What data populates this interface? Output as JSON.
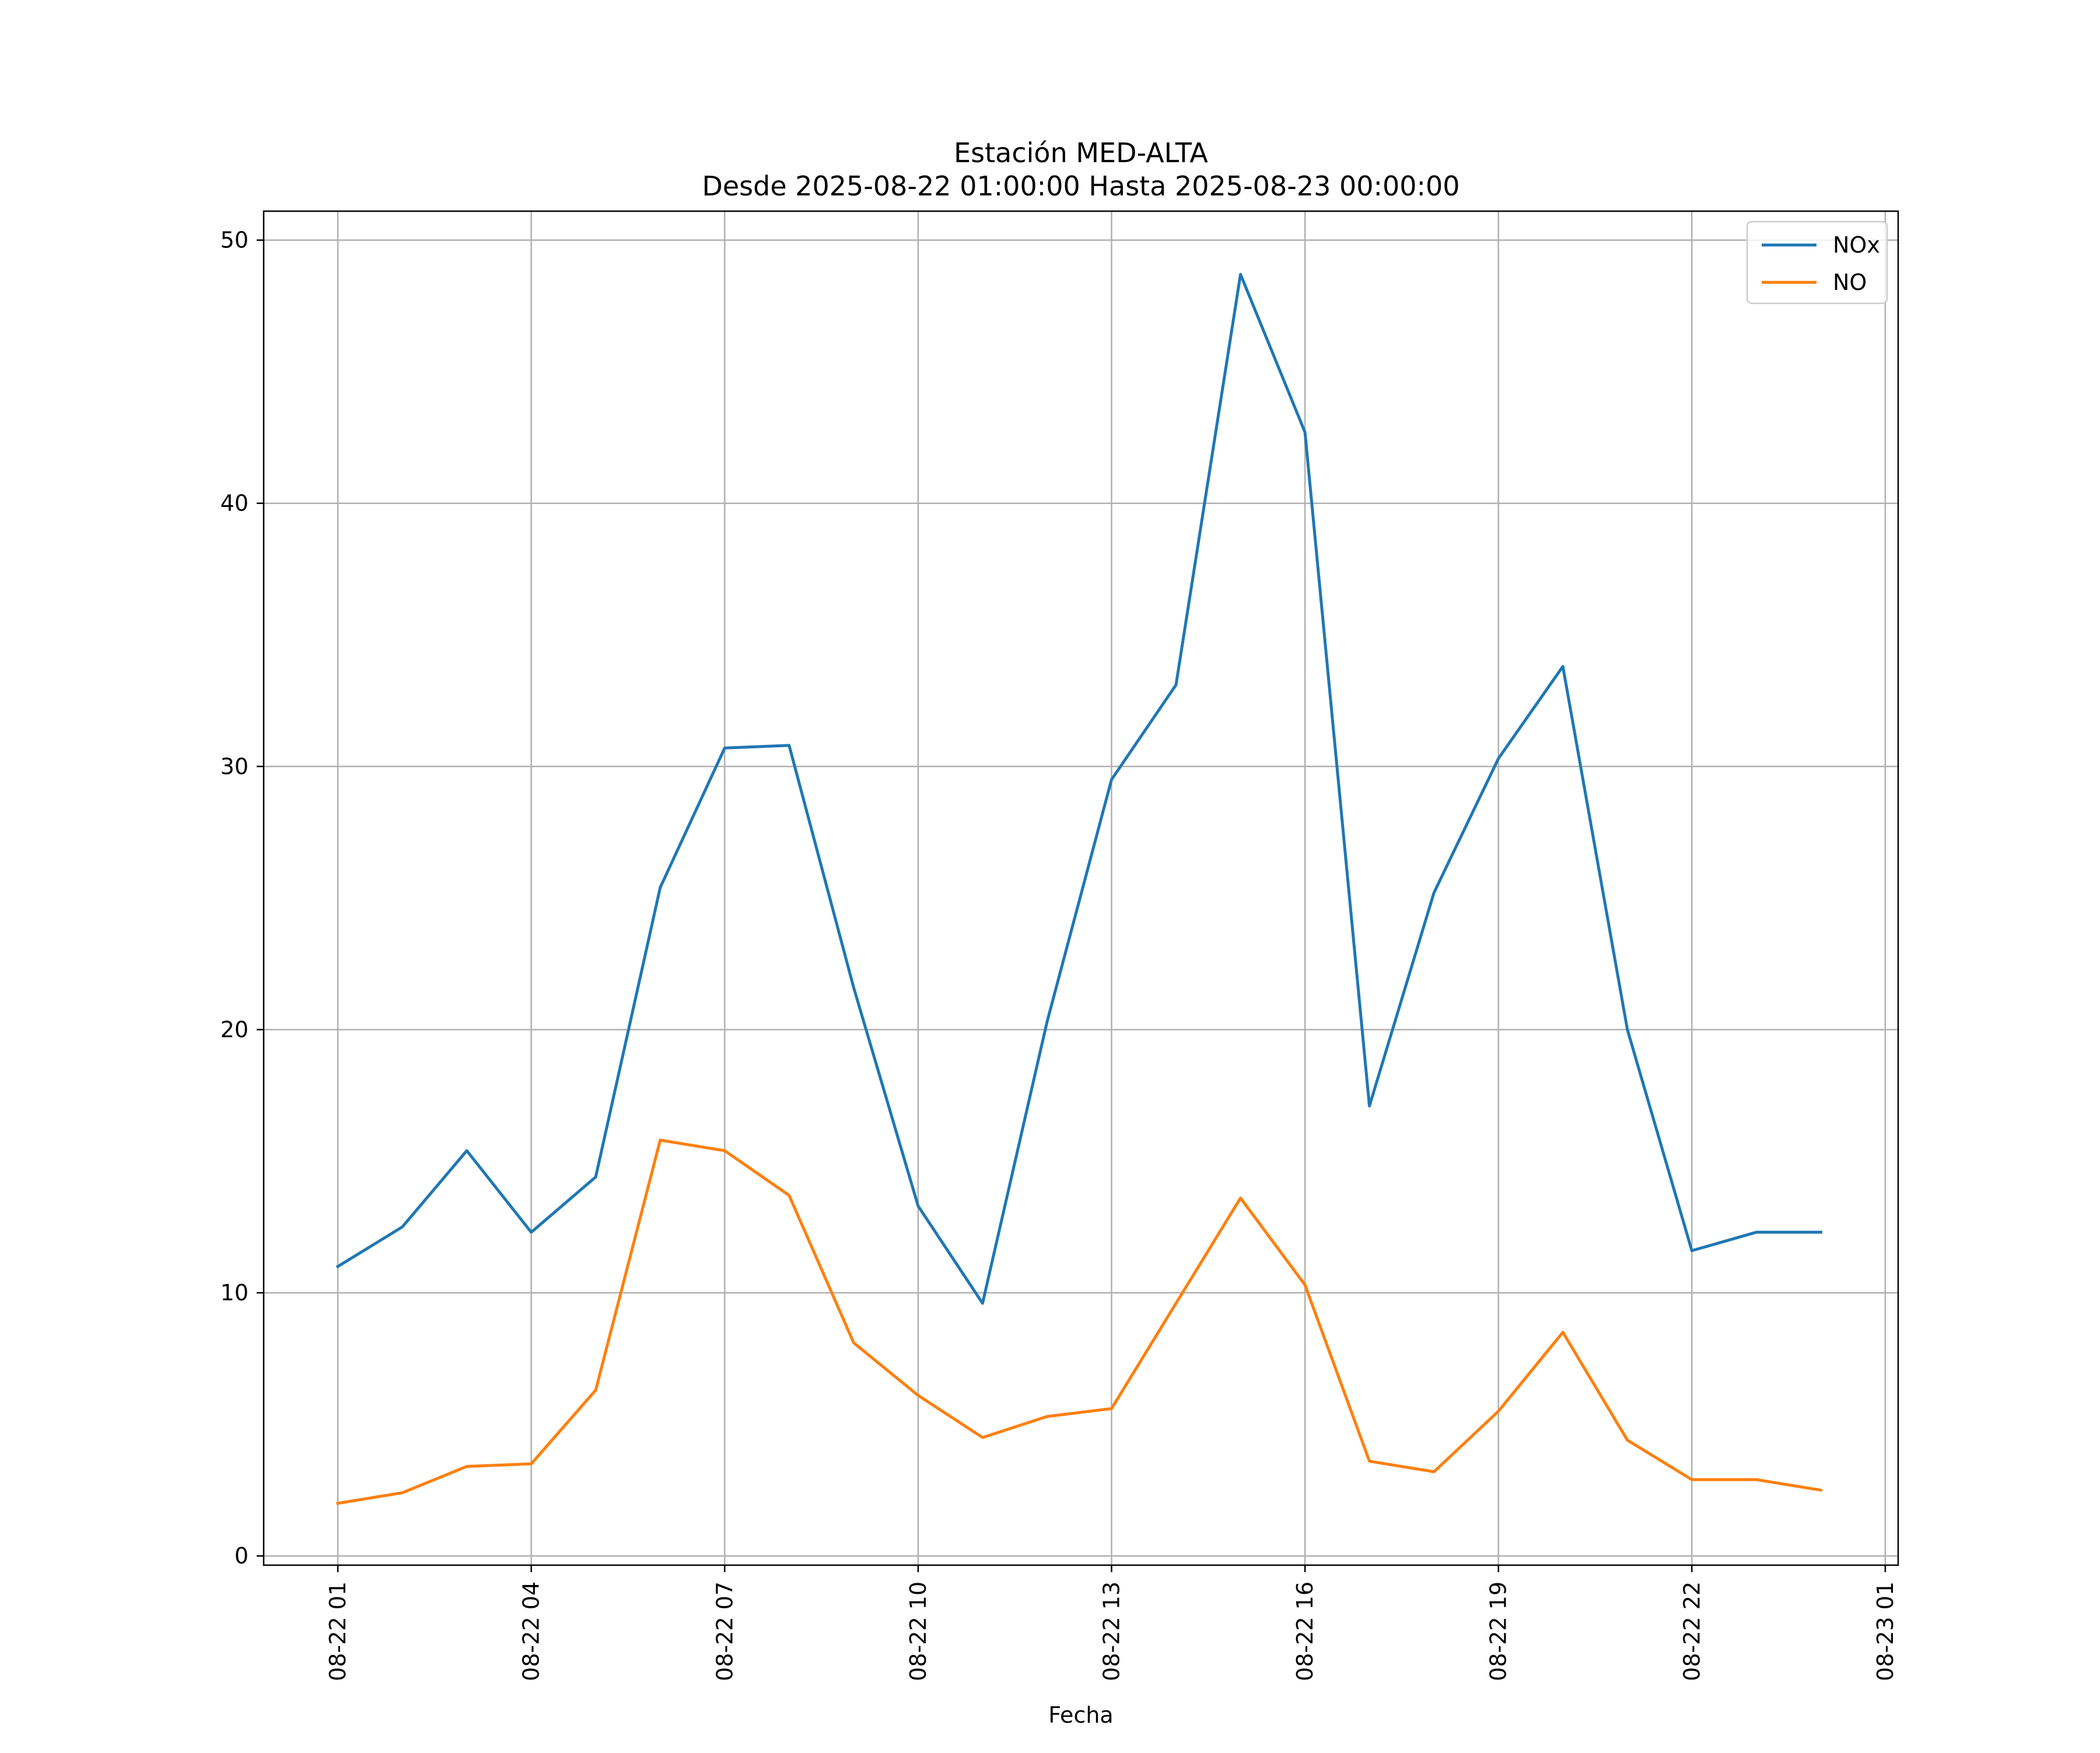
{
  "chart_data": {
    "type": "line",
    "title": "Estación MED-ALTA",
    "subtitle": "Desde 2025-08-22 01:00:00 Hasta 2025-08-23 00:00:00",
    "xlabel": "Fecha",
    "ylabel": "",
    "x_unit": "hours since 2025-08-22 00:00",
    "xlim": [
      -0.15,
      25.2
    ],
    "ylim": [
      -0.35,
      51.1
    ],
    "x_ticks": [
      {
        "value": 1,
        "label": "08-22 01"
      },
      {
        "value": 4,
        "label": "08-22 04"
      },
      {
        "value": 7,
        "label": "08-22 07"
      },
      {
        "value": 10,
        "label": "08-22 10"
      },
      {
        "value": 13,
        "label": "08-22 13"
      },
      {
        "value": 16,
        "label": "08-22 16"
      },
      {
        "value": 19,
        "label": "08-22 19"
      },
      {
        "value": 22,
        "label": "08-22 22"
      },
      {
        "value": 25,
        "label": "08-23 01"
      }
    ],
    "y_ticks": [
      {
        "value": 0,
        "label": "0"
      },
      {
        "value": 10,
        "label": "10"
      },
      {
        "value": 20,
        "label": "20"
      },
      {
        "value": 30,
        "label": "30"
      },
      {
        "value": 40,
        "label": "40"
      },
      {
        "value": 50,
        "label": "50"
      }
    ],
    "grid": true,
    "legend_position": "top-right",
    "x": [
      1,
      2,
      3,
      4,
      5,
      6,
      7,
      8,
      9,
      10,
      11,
      12,
      13,
      14,
      15,
      16,
      17,
      18,
      19,
      20,
      21,
      22,
      23,
      24
    ],
    "series": [
      {
        "name": "NOx",
        "color": "#1f77b4",
        "values": [
          11.0,
          12.5,
          15.4,
          12.3,
          14.4,
          25.4,
          30.7,
          30.8,
          21.6,
          13.3,
          9.6,
          20.3,
          29.5,
          33.1,
          48.7,
          42.7,
          17.1,
          25.2,
          30.3,
          33.8,
          20.0,
          11.6,
          12.3,
          12.3
        ]
      },
      {
        "name": "NO",
        "color": "#ff7f0e",
        "values": [
          2.0,
          2.4,
          3.4,
          3.5,
          6.3,
          15.8,
          15.4,
          13.7,
          8.1,
          6.1,
          4.5,
          5.3,
          5.6,
          9.6,
          13.6,
          10.3,
          3.6,
          3.2,
          5.5,
          8.5,
          4.4,
          2.9,
          2.9,
          2.5
        ]
      }
    ]
  }
}
